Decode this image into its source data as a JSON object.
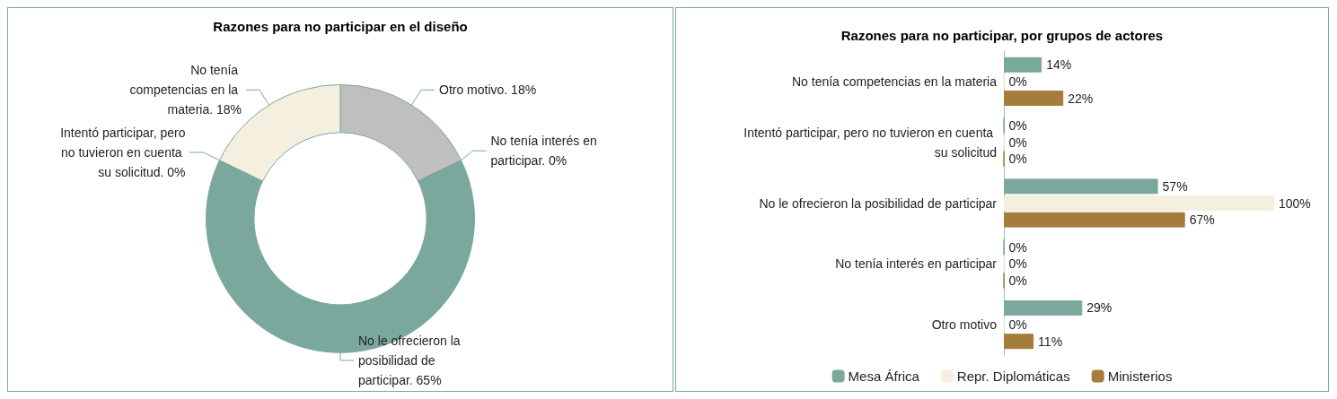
{
  "chart_data": [
    {
      "type": "donut",
      "title": "Razones para no participar en el diseño",
      "categories": [
        "Otro motivo.",
        "No tenía interés en participar.",
        "No le ofrecieron la posibilidad de participar.",
        "Intentó participar, pero no tuvieron en cuenta su solicitud.",
        "No tenía competencias en la materia."
      ],
      "values": [
        18,
        0,
        65,
        0,
        18
      ],
      "value_labels": [
        "18%",
        "0%",
        "65%",
        "0%",
        "18%"
      ],
      "colors": [
        "#bfbfbf",
        "#dfe9e6",
        "#7ba89c",
        "#a67c3a",
        "#f5efe0"
      ]
    },
    {
      "type": "bar",
      "orientation": "horizontal",
      "title": "Razones para no participar, por grupos de actores",
      "categories": [
        "No tenía competencias en la materia",
        "Intentó participar, pero no tuvieron en cuenta su solicitud",
        "No le ofrecieron la posibilidad de participar",
        "No tenía interés en participar",
        "Otro motivo"
      ],
      "series": [
        {
          "name": "Mesa África",
          "color": "#7ba89c",
          "values": [
            14,
            0,
            57,
            0,
            29
          ],
          "value_labels": [
            "14%",
            "0%",
            "57%",
            "0%",
            "29%"
          ]
        },
        {
          "name": "Repr. Diplomáticas",
          "color": "#f5efe0",
          "values": [
            0,
            0,
            100,
            0,
            0
          ],
          "value_labels": [
            "0%",
            "0%",
            "100%",
            "0%",
            "0%"
          ]
        },
        {
          "name": "Ministerios",
          "color": "#a67c3a",
          "values": [
            22,
            0,
            67,
            0,
            11
          ],
          "value_labels": [
            "22%",
            "0%",
            "67%",
            "0%",
            "11%"
          ]
        }
      ],
      "xlim": [
        0,
        100
      ],
      "tick_labels": "y",
      "legend": "bottom"
    }
  ]
}
